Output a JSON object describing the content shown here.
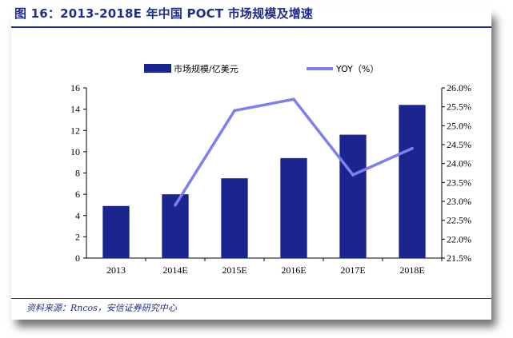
{
  "figure": {
    "title": "图 16：2013-2018E 年中国 POCT 市场规模及增速",
    "source": "资料来源：Rncos，安信证券研究中心"
  },
  "colors": {
    "bar": "#1a2590",
    "line": "#7f7ff0",
    "accent": "#1f2d8c"
  },
  "chart_data": {
    "type": "bar",
    "categories": [
      "2013",
      "2014E",
      "2015E",
      "2016E",
      "2017E",
      "2018E"
    ],
    "series": [
      {
        "name": "市场规模/亿美元",
        "type": "bar",
        "axis": "left",
        "values": [
          4.9,
          6.0,
          7.5,
          9.4,
          11.6,
          14.4
        ]
      },
      {
        "name": "YOY（%）",
        "type": "line",
        "axis": "right",
        "values": [
          null,
          22.9,
          25.4,
          25.7,
          23.7,
          24.4
        ]
      }
    ],
    "y_left": {
      "min": 0,
      "max": 16,
      "ticks": [
        "0",
        "2",
        "4",
        "6",
        "8",
        "10",
        "12",
        "14",
        "16"
      ]
    },
    "y_right": {
      "min": 21.5,
      "max": 26.0,
      "ticks": [
        "21.5%",
        "22.0%",
        "22.5%",
        "23.0%",
        "23.5%",
        "24.0%",
        "24.5%",
        "25.0%",
        "25.5%",
        "26.0%"
      ]
    },
    "legend": {
      "placement": "top",
      "entries": [
        "市场规模/亿美元",
        "YOY（%）"
      ]
    }
  }
}
